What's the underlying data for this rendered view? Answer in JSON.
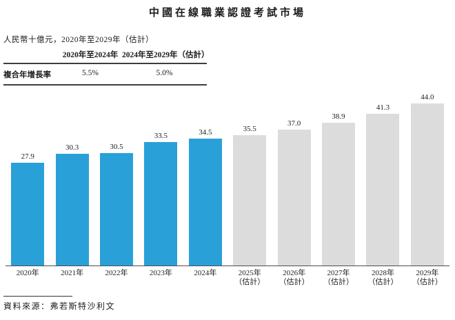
{
  "title": "中國在線職業認證考試市場",
  "subtitle": "人民幣十億元，2020年至2029年（估計）",
  "cagr_table": {
    "row_label": "複合年增長率",
    "columns": [
      "2020年至2024年",
      "2024年至2029年（估計）"
    ],
    "values": [
      "5.5%",
      "5.0%"
    ]
  },
  "source": "資料來源：弗若斯特沙利文",
  "colors": {
    "historical_bar": "#2AA0D8",
    "forecast_bar": "#DCDCDC",
    "axis_line": "#4d4d4d"
  },
  "chart_data": {
    "type": "bar",
    "title": "中國在線職業認證考試市場",
    "unit_label": "人民幣十億元",
    "categories": [
      "2020年",
      "2021年",
      "2022年",
      "2023年",
      "2024年",
      "2025年",
      "2026年",
      "2027年",
      "2028年",
      "2029年"
    ],
    "category_sublabels": [
      "",
      "",
      "",
      "",
      "",
      "（估計）",
      "（估計）",
      "（估計）",
      "（估計）",
      "（估計）"
    ],
    "values": [
      27.9,
      30.3,
      30.5,
      33.5,
      34.5,
      35.5,
      37.0,
      38.9,
      41.3,
      44.0
    ],
    "value_labels": [
      "27.9",
      "30.3",
      "30.5",
      "33.5",
      "34.5",
      "35.5",
      "37.0",
      "38.9",
      "41.3",
      "44.0"
    ],
    "bar_kinds": [
      "historical",
      "historical",
      "historical",
      "historical",
      "historical",
      "forecast",
      "forecast",
      "forecast",
      "forecast",
      "forecast"
    ],
    "xlabel": "",
    "ylabel": "",
    "ylim": [
      0,
      45
    ],
    "grid": false,
    "legend": "none",
    "cagr_2020_2024": "5.5%",
    "cagr_2024_2029": "5.0%"
  }
}
